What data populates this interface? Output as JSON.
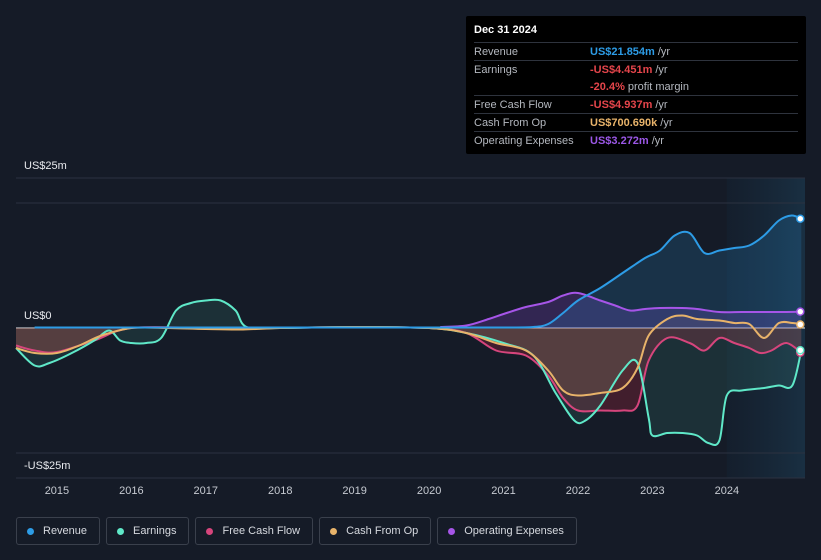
{
  "tooltip": {
    "date": "Dec 31 2024",
    "rows": [
      {
        "label": "Revenue",
        "value": "US$21.854m",
        "unit": "/yr",
        "color": "#2d9ce6"
      },
      {
        "label": "Earnings",
        "value": "-US$4.451m",
        "unit": "/yr",
        "color": "#e5454b"
      },
      {
        "label": "",
        "value": "-20.4%",
        "unit": "profit margin",
        "color": "#e5454b"
      },
      {
        "label": "Free Cash Flow",
        "value": "-US$4.937m",
        "unit": "/yr",
        "color": "#e5454b"
      },
      {
        "label": "Cash From Op",
        "value": "US$700.690k",
        "unit": "/yr",
        "color": "#e8b36a"
      },
      {
        "label": "Operating Expenses",
        "value": "US$3.272m",
        "unit": "/yr",
        "color": "#9b57e6"
      }
    ]
  },
  "legend": [
    {
      "label": "Revenue",
      "color": "#2d9ce6"
    },
    {
      "label": "Earnings",
      "color": "#5fe8c8"
    },
    {
      "label": "Free Cash Flow",
      "color": "#d6457c"
    },
    {
      "label": "Cash From Op",
      "color": "#e8b36a"
    },
    {
      "label": "Operating Expenses",
      "color": "#a655e8"
    }
  ],
  "chart_data": {
    "type": "line",
    "title": "",
    "y_tick_labels": [
      "US$25m",
      "US$0",
      "-US$25m"
    ],
    "ylim": [
      -30,
      30
    ],
    "x_ticks": [
      "2015",
      "2016",
      "2017",
      "2018",
      "2019",
      "2020",
      "2021",
      "2022",
      "2023",
      "2024"
    ],
    "xlim": [
      2014.45,
      2025.05
    ],
    "highlight_from": 2024.0,
    "series": [
      {
        "name": "Revenue",
        "color": "#2d9ce6",
        "points": [
          [
            2014.7,
            0.1
          ],
          [
            2016.0,
            0.1
          ],
          [
            2017.0,
            0.1
          ],
          [
            2018.0,
            0.1
          ],
          [
            2019.0,
            0.1
          ],
          [
            2020.0,
            0.1
          ],
          [
            2020.5,
            0.1
          ],
          [
            2021.0,
            0.1
          ],
          [
            2021.4,
            0.2
          ],
          [
            2021.6,
            0.8
          ],
          [
            2021.8,
            3.0
          ],
          [
            2022.0,
            5.5
          ],
          [
            2022.3,
            8.0
          ],
          [
            2022.6,
            11.0
          ],
          [
            2022.9,
            14.0
          ],
          [
            2023.1,
            15.5
          ],
          [
            2023.3,
            18.5
          ],
          [
            2023.5,
            19.0
          ],
          [
            2023.7,
            15.0
          ],
          [
            2023.9,
            15.5
          ],
          [
            2024.1,
            16.0
          ],
          [
            2024.3,
            16.5
          ],
          [
            2024.5,
            18.5
          ],
          [
            2024.7,
            21.5
          ],
          [
            2024.87,
            22.5
          ],
          [
            2025.0,
            21.854
          ]
        ]
      },
      {
        "name": "Earnings",
        "color": "#5fe8c8",
        "points": [
          [
            2014.45,
            -4.0
          ],
          [
            2014.7,
            -7.5
          ],
          [
            2014.9,
            -7.0
          ],
          [
            2015.2,
            -5.0
          ],
          [
            2015.5,
            -2.5
          ],
          [
            2015.7,
            -0.5
          ],
          [
            2015.85,
            -2.5
          ],
          [
            2016.0,
            -3.0
          ],
          [
            2016.2,
            -3.0
          ],
          [
            2016.4,
            -2.0
          ],
          [
            2016.6,
            3.5
          ],
          [
            2016.8,
            5.0
          ],
          [
            2017.0,
            5.5
          ],
          [
            2017.2,
            5.5
          ],
          [
            2017.4,
            3.5
          ],
          [
            2017.55,
            0.2
          ],
          [
            2018.0,
            0.0
          ],
          [
            2019.0,
            0.2
          ],
          [
            2020.0,
            0.0
          ],
          [
            2020.5,
            -1.0
          ],
          [
            2021.0,
            -3.0
          ],
          [
            2021.4,
            -5.5
          ],
          [
            2021.7,
            -13.0
          ],
          [
            2021.95,
            -18.5
          ],
          [
            2022.1,
            -18.5
          ],
          [
            2022.3,
            -15.5
          ],
          [
            2022.6,
            -8.5
          ],
          [
            2022.8,
            -7.0
          ],
          [
            2022.95,
            -18.0
          ],
          [
            2023.0,
            -21.5
          ],
          [
            2023.2,
            -21.0
          ],
          [
            2023.4,
            -21.0
          ],
          [
            2023.6,
            -21.5
          ],
          [
            2023.75,
            -23.0
          ],
          [
            2023.9,
            -22.5
          ],
          [
            2024.0,
            -13.5
          ],
          [
            2024.2,
            -12.5
          ],
          [
            2024.5,
            -12.0
          ],
          [
            2024.7,
            -11.5
          ],
          [
            2024.88,
            -11.5
          ],
          [
            2025.0,
            -4.451
          ]
        ]
      },
      {
        "name": "Free Cash Flow",
        "color": "#d6457c",
        "points": [
          [
            2014.45,
            -3.5
          ],
          [
            2014.7,
            -4.5
          ],
          [
            2015.0,
            -4.8
          ],
          [
            2015.5,
            -2.5
          ],
          [
            2016.0,
            0.0
          ],
          [
            2017.0,
            0.0
          ],
          [
            2018.0,
            0.0
          ],
          [
            2019.0,
            0.2
          ],
          [
            2020.0,
            0.0
          ],
          [
            2020.5,
            -1.0
          ],
          [
            2020.9,
            -4.5
          ],
          [
            2021.3,
            -5.5
          ],
          [
            2021.6,
            -9.5
          ],
          [
            2021.8,
            -14.0
          ],
          [
            2022.0,
            -16.5
          ],
          [
            2022.3,
            -16.5
          ],
          [
            2022.6,
            -16.5
          ],
          [
            2022.8,
            -15.5
          ],
          [
            2022.95,
            -6.5
          ],
          [
            2023.2,
            -2.0
          ],
          [
            2023.5,
            -3.0
          ],
          [
            2023.7,
            -4.5
          ],
          [
            2023.9,
            -2.0
          ],
          [
            2024.1,
            -3.0
          ],
          [
            2024.3,
            -4.0
          ],
          [
            2024.45,
            -5.0
          ],
          [
            2024.6,
            -4.5
          ],
          [
            2024.8,
            -3.0
          ],
          [
            2025.0,
            -4.937
          ]
        ]
      },
      {
        "name": "Cash From Op",
        "color": "#e8b36a",
        "points": [
          [
            2014.45,
            -4.0
          ],
          [
            2014.7,
            -5.0
          ],
          [
            2015.0,
            -5.0
          ],
          [
            2015.3,
            -3.5
          ],
          [
            2015.6,
            -1.5
          ],
          [
            2016.0,
            0.0
          ],
          [
            2016.5,
            0.0
          ],
          [
            2017.0,
            -0.2
          ],
          [
            2017.5,
            -0.3
          ],
          [
            2018.0,
            0.0
          ],
          [
            2019.0,
            0.2
          ],
          [
            2020.0,
            0.0
          ],
          [
            2020.5,
            -1.0
          ],
          [
            2020.9,
            -3.0
          ],
          [
            2021.3,
            -4.5
          ],
          [
            2021.6,
            -8.5
          ],
          [
            2021.8,
            -12.5
          ],
          [
            2022.0,
            -13.5
          ],
          [
            2022.3,
            -13.0
          ],
          [
            2022.6,
            -12.0
          ],
          [
            2022.8,
            -8.0
          ],
          [
            2022.95,
            -1.5
          ],
          [
            2023.2,
            1.8
          ],
          [
            2023.4,
            2.5
          ],
          [
            2023.6,
            1.8
          ],
          [
            2023.9,
            1.5
          ],
          [
            2024.1,
            1.0
          ],
          [
            2024.3,
            0.8
          ],
          [
            2024.5,
            -2.0
          ],
          [
            2024.7,
            1.0
          ],
          [
            2024.88,
            1.0
          ],
          [
            2025.0,
            0.701
          ]
        ]
      },
      {
        "name": "Operating Expenses",
        "color": "#a655e8",
        "points": [
          [
            2020.15,
            0.2
          ],
          [
            2020.5,
            0.5
          ],
          [
            2020.8,
            1.8
          ],
          [
            2021.0,
            2.8
          ],
          [
            2021.3,
            4.2
          ],
          [
            2021.6,
            5.2
          ],
          [
            2021.8,
            6.5
          ],
          [
            2022.0,
            7.0
          ],
          [
            2022.3,
            5.5
          ],
          [
            2022.5,
            4.5
          ],
          [
            2022.7,
            3.5
          ],
          [
            2022.9,
            3.8
          ],
          [
            2023.1,
            4.0
          ],
          [
            2023.4,
            4.0
          ],
          [
            2023.6,
            3.8
          ],
          [
            2023.9,
            3.2
          ],
          [
            2024.2,
            3.2
          ],
          [
            2024.5,
            3.2
          ],
          [
            2024.8,
            3.2
          ],
          [
            2025.0,
            3.272
          ]
        ]
      }
    ]
  }
}
